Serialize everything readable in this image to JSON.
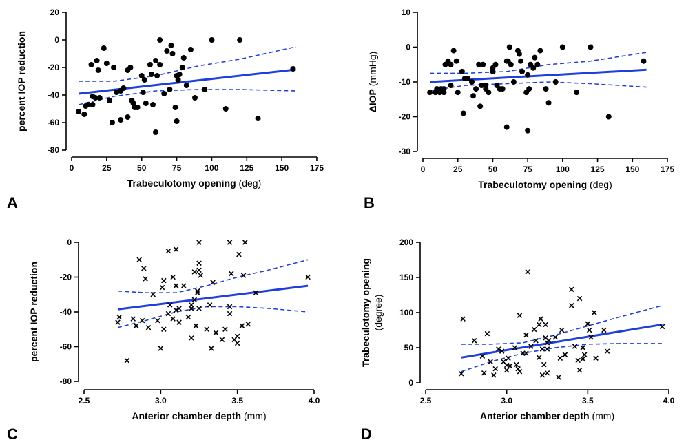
{
  "colors": {
    "fit": "#1f3fdd",
    "points": "#000000",
    "axes": "#000000"
  },
  "chart_data": [
    {
      "panel": "A",
      "type": "scatter",
      "marker": "dot",
      "xlabel_bold": "Trabeculotomy opening",
      "xlabel_unit": "(deg)",
      "ylabel_bold": "percent IOP reduction",
      "ylabel_unit": "",
      "ylabel_line2": "",
      "xlim": [
        0,
        175
      ],
      "ylim": [
        -80,
        20
      ],
      "xticks": [
        "0",
        "25",
        "50",
        "75",
        "100",
        "125",
        "150",
        "175"
      ],
      "yticks": [
        "20",
        "0",
        "-20",
        "-40",
        "-60",
        "-80"
      ],
      "points": [
        [
          5,
          -52
        ],
        [
          9,
          -54
        ],
        [
          10,
          -48
        ],
        [
          12,
          -47
        ],
        [
          14,
          -18
        ],
        [
          15,
          -47
        ],
        [
          15,
          -41
        ],
        [
          18,
          -15
        ],
        [
          17,
          -42
        ],
        [
          19,
          -22
        ],
        [
          20,
          -42
        ],
        [
          23,
          -6
        ],
        [
          25,
          -17
        ],
        [
          27,
          -44
        ],
        [
          29,
          -60
        ],
        [
          30,
          -20
        ],
        [
          32,
          -38
        ],
        [
          35,
          -37
        ],
        [
          35,
          -58
        ],
        [
          37,
          -35
        ],
        [
          40,
          -22
        ],
        [
          40,
          -56
        ],
        [
          42,
          -20
        ],
        [
          43,
          -44
        ],
        [
          44,
          -46
        ],
        [
          45,
          -49
        ],
        [
          47,
          -49
        ],
        [
          50,
          -26
        ],
        [
          51,
          -38
        ],
        [
          52,
          -29
        ],
        [
          53,
          -46
        ],
        [
          56,
          -18
        ],
        [
          57,
          -25
        ],
        [
          58,
          -47
        ],
        [
          60,
          -15
        ],
        [
          60,
          -67
        ],
        [
          61,
          -26
        ],
        [
          63,
          0
        ],
        [
          63,
          -18
        ],
        [
          66,
          -39
        ],
        [
          68,
          -8
        ],
        [
          70,
          -36
        ],
        [
          71,
          -4
        ],
        [
          72,
          -10
        ],
        [
          74,
          -49
        ],
        [
          75,
          -59
        ],
        [
          75,
          -26
        ],
        [
          76,
          -29
        ],
        [
          77,
          -25
        ],
        [
          79,
          -20
        ],
        [
          80,
          -13
        ],
        [
          82,
          -33
        ],
        [
          85,
          -7
        ],
        [
          88,
          -42
        ],
        [
          95,
          -36
        ],
        [
          100,
          0
        ],
        [
          110,
          -50
        ],
        [
          120,
          0
        ],
        [
          133,
          -57
        ],
        [
          158,
          -21
        ]
      ],
      "fit": [
        [
          5,
          -39
        ],
        [
          160,
          -21.5
        ]
      ],
      "ci_upper": [
        [
          5,
          -30
        ],
        [
          30,
          -30
        ],
        [
          60,
          -26
        ],
        [
          90,
          -19
        ],
        [
          120,
          -14
        ],
        [
          160,
          -5
        ]
      ],
      "ci_lower": [
        [
          5,
          -47
        ],
        [
          30,
          -41
        ],
        [
          60,
          -37
        ],
        [
          90,
          -36
        ],
        [
          120,
          -36
        ],
        [
          160,
          -37
        ]
      ]
    },
    {
      "panel": "B",
      "type": "scatter",
      "marker": "dot",
      "xlabel_bold": "Trabeculotomy opening",
      "xlabel_unit": "(deg)",
      "ylabel_bold": "ΔIOP",
      "ylabel_unit": "(mmHg)",
      "ylabel_line2": "",
      "xlim": [
        0,
        175
      ],
      "ylim": [
        -30,
        10
      ],
      "xticks": [
        "0",
        "25",
        "50",
        "75",
        "100",
        "125",
        "150",
        "175"
      ],
      "yticks": [
        "10",
        "0",
        "-10",
        "-20",
        "-30"
      ],
      "points": [
        [
          5,
          -13
        ],
        [
          9,
          -13
        ],
        [
          10,
          -12
        ],
        [
          12,
          -13
        ],
        [
          13,
          -12
        ],
        [
          15,
          -13
        ],
        [
          15,
          -12
        ],
        [
          16,
          -5
        ],
        [
          18,
          -4
        ],
        [
          20,
          -5
        ],
        [
          20,
          -11
        ],
        [
          22,
          -1
        ],
        [
          24,
          -4
        ],
        [
          25,
          -13
        ],
        [
          28,
          -7
        ],
        [
          29,
          -19
        ],
        [
          30,
          -9
        ],
        [
          32,
          -9
        ],
        [
          35,
          -10
        ],
        [
          36,
          -14
        ],
        [
          38,
          -12
        ],
        [
          40,
          -5
        ],
        [
          41,
          -17
        ],
        [
          42,
          -11
        ],
        [
          43,
          -5
        ],
        [
          45,
          -11
        ],
        [
          45,
          -12
        ],
        [
          47,
          -13
        ],
        [
          50,
          -7
        ],
        [
          50,
          -6
        ],
        [
          52,
          -5
        ],
        [
          53,
          -11
        ],
        [
          55,
          -12
        ],
        [
          57,
          -12
        ],
        [
          60,
          -4
        ],
        [
          60,
          -23
        ],
        [
          61,
          -4
        ],
        [
          62,
          0
        ],
        [
          63,
          -5
        ],
        [
          65,
          -10
        ],
        [
          68,
          -1
        ],
        [
          69,
          -2
        ],
        [
          70,
          -4
        ],
        [
          71,
          -7
        ],
        [
          74,
          -13
        ],
        [
          75,
          -24
        ],
        [
          75,
          -8
        ],
        [
          76,
          -12
        ],
        [
          77,
          -5
        ],
        [
          79,
          -6
        ],
        [
          80,
          -3
        ],
        [
          82,
          -5
        ],
        [
          84,
          -1
        ],
        [
          88,
          -12
        ],
        [
          90,
          -16
        ],
        [
          95,
          -10
        ],
        [
          100,
          0
        ],
        [
          110,
          -13
        ],
        [
          120,
          0
        ],
        [
          133,
          -20
        ],
        [
          158,
          -4
        ]
      ],
      "fit": [
        [
          5,
          -10
        ],
        [
          160,
          -6.5
        ]
      ],
      "ci_upper": [
        [
          5,
          -7.5
        ],
        [
          30,
          -7.5
        ],
        [
          60,
          -7
        ],
        [
          90,
          -5
        ],
        [
          120,
          -4
        ],
        [
          160,
          -1.5
        ]
      ],
      "ci_lower": [
        [
          5,
          -12.5
        ],
        [
          30,
          -11
        ],
        [
          60,
          -10.5
        ],
        [
          90,
          -10
        ],
        [
          120,
          -10.5
        ],
        [
          160,
          -11.5
        ]
      ]
    },
    {
      "panel": "C",
      "type": "scatter",
      "marker": "cross",
      "xlabel_bold": "Anterior chamber depth",
      "xlabel_unit": "(mm)",
      "ylabel_bold": "percent IOP reduction",
      "ylabel_unit": "",
      "ylabel_line2": "",
      "xlim": [
        2.5,
        4.0
      ],
      "ylim": [
        -80,
        0
      ],
      "xticks": [
        "2.5",
        "3.0",
        "3.5",
        "4.0"
      ],
      "yticks": [
        "0",
        "-20",
        "-40",
        "-60",
        "-80"
      ],
      "points": [
        [
          2.72,
          -46
        ],
        [
          2.73,
          -43
        ],
        [
          2.78,
          -68
        ],
        [
          2.82,
          -44
        ],
        [
          2.84,
          -48
        ],
        [
          2.86,
          -10
        ],
        [
          2.88,
          -45
        ],
        [
          2.89,
          -15
        ],
        [
          2.9,
          -21
        ],
        [
          2.92,
          -49
        ],
        [
          2.95,
          -30
        ],
        [
          2.98,
          -45
        ],
        [
          3.0,
          -61
        ],
        [
          3.01,
          -26
        ],
        [
          3.02,
          -50
        ],
        [
          3.02,
          -22
        ],
        [
          3.05,
          -5
        ],
        [
          3.05,
          -41
        ],
        [
          3.06,
          -36
        ],
        [
          3.08,
          -44
        ],
        [
          3.08,
          -20
        ],
        [
          3.1,
          -4
        ],
        [
          3.1,
          -25
        ],
        [
          3.1,
          -39
        ],
        [
          3.12,
          -38
        ],
        [
          3.12,
          -46
        ],
        [
          3.15,
          -25
        ],
        [
          3.18,
          -43
        ],
        [
          3.2,
          -55
        ],
        [
          3.2,
          -38
        ],
        [
          3.2,
          -36
        ],
        [
          3.22,
          -33
        ],
        [
          3.22,
          -17
        ],
        [
          3.23,
          -48
        ],
        [
          3.24,
          -28
        ],
        [
          3.24,
          -29
        ],
        [
          3.25,
          -12
        ],
        [
          3.25,
          -16
        ],
        [
          3.25,
          -38
        ],
        [
          3.25,
          0
        ],
        [
          3.26,
          -19
        ],
        [
          3.3,
          -50
        ],
        [
          3.32,
          -36
        ],
        [
          3.33,
          -61
        ],
        [
          3.34,
          -23
        ],
        [
          3.36,
          -52
        ],
        [
          3.4,
          -56
        ],
        [
          3.42,
          -50
        ],
        [
          3.45,
          -37
        ],
        [
          3.45,
          -41
        ],
        [
          3.45,
          0
        ],
        [
          3.46,
          -18
        ],
        [
          3.48,
          -56
        ],
        [
          3.5,
          -54
        ],
        [
          3.5,
          -58
        ],
        [
          3.51,
          -7
        ],
        [
          3.53,
          -48
        ],
        [
          3.54,
          -19
        ],
        [
          3.55,
          0
        ],
        [
          3.57,
          -47
        ],
        [
          3.62,
          -29
        ],
        [
          3.96,
          -20
        ]
      ],
      "fit": [
        [
          2.72,
          -38.5
        ],
        [
          3.96,
          -25
        ]
      ],
      "ci_upper": [
        [
          2.72,
          -28
        ],
        [
          2.9,
          -29
        ],
        [
          3.1,
          -29
        ],
        [
          3.3,
          -25
        ],
        [
          3.5,
          -20
        ],
        [
          3.7,
          -16
        ],
        [
          3.96,
          -10
        ]
      ],
      "ci_lower": [
        [
          2.72,
          -49
        ],
        [
          2.9,
          -45
        ],
        [
          3.1,
          -40
        ],
        [
          3.3,
          -37
        ],
        [
          3.5,
          -37
        ],
        [
          3.7,
          -38
        ],
        [
          3.96,
          -40
        ]
      ]
    },
    {
      "panel": "D",
      "type": "scatter",
      "marker": "cross",
      "xlabel_bold": "Anterior chamber depth",
      "xlabel_unit": "(mm)",
      "ylabel_bold": "Trabeculotomy opening",
      "ylabel_unit": "",
      "ylabel_line2": "(degree)",
      "xlim": [
        2.5,
        4.0
      ],
      "ylim": [
        0,
        200
      ],
      "xticks": [
        "2.5",
        "3.0",
        "3.5",
        "4.0"
      ],
      "yticks": [
        "200",
        "150",
        "100",
        "50",
        "0"
      ],
      "points": [
        [
          2.72,
          13
        ],
        [
          2.73,
          91
        ],
        [
          2.8,
          60
        ],
        [
          2.85,
          38
        ],
        [
          2.86,
          14
        ],
        [
          2.88,
          70
        ],
        [
          2.9,
          30
        ],
        [
          2.92,
          11
        ],
        [
          2.93,
          20
        ],
        [
          2.95,
          48
        ],
        [
          2.97,
          45
        ],
        [
          2.98,
          30
        ],
        [
          3.0,
          18
        ],
        [
          3.0,
          25
        ],
        [
          3.01,
          35
        ],
        [
          3.02,
          24
        ],
        [
          3.05,
          50
        ],
        [
          3.06,
          26
        ],
        [
          3.07,
          20
        ],
        [
          3.08,
          16
        ],
        [
          3.08,
          96
        ],
        [
          3.1,
          42
        ],
        [
          3.12,
          42
        ],
        [
          3.12,
          68
        ],
        [
          3.13,
          158
        ],
        [
          3.15,
          52
        ],
        [
          3.17,
          76
        ],
        [
          3.18,
          60
        ],
        [
          3.2,
          36
        ],
        [
          3.2,
          83
        ],
        [
          3.21,
          91
        ],
        [
          3.22,
          11
        ],
        [
          3.22,
          48
        ],
        [
          3.23,
          26
        ],
        [
          3.24,
          83
        ],
        [
          3.24,
          64
        ],
        [
          3.25,
          14
        ],
        [
          3.25,
          48
        ],
        [
          3.25,
          57
        ],
        [
          3.26,
          60
        ],
        [
          3.3,
          65
        ],
        [
          3.32,
          8
        ],
        [
          3.33,
          35
        ],
        [
          3.34,
          75
        ],
        [
          3.36,
          40
        ],
        [
          3.4,
          133
        ],
        [
          3.4,
          110
        ],
        [
          3.42,
          52
        ],
        [
          3.44,
          32
        ],
        [
          3.45,
          18
        ],
        [
          3.45,
          120
        ],
        [
          3.47,
          50
        ],
        [
          3.47,
          34
        ],
        [
          3.48,
          40
        ],
        [
          3.5,
          84
        ],
        [
          3.51,
          75
        ],
        [
          3.52,
          65
        ],
        [
          3.54,
          100
        ],
        [
          3.55,
          35
        ],
        [
          3.6,
          75
        ],
        [
          3.62,
          45
        ],
        [
          3.96,
          80
        ]
      ],
      "fit": [
        [
          2.72,
          36
        ],
        [
          3.96,
          83
        ]
      ],
      "ci_upper": [
        [
          2.72,
          55
        ],
        [
          2.9,
          55
        ],
        [
          3.1,
          57
        ],
        [
          3.3,
          68
        ],
        [
          3.5,
          81
        ],
        [
          3.7,
          94
        ],
        [
          3.96,
          110
        ]
      ],
      "ci_lower": [
        [
          2.72,
          16
        ],
        [
          2.9,
          30
        ],
        [
          3.1,
          42
        ],
        [
          3.3,
          50
        ],
        [
          3.5,
          55
        ],
        [
          3.7,
          56
        ],
        [
          3.96,
          56
        ]
      ]
    }
  ]
}
